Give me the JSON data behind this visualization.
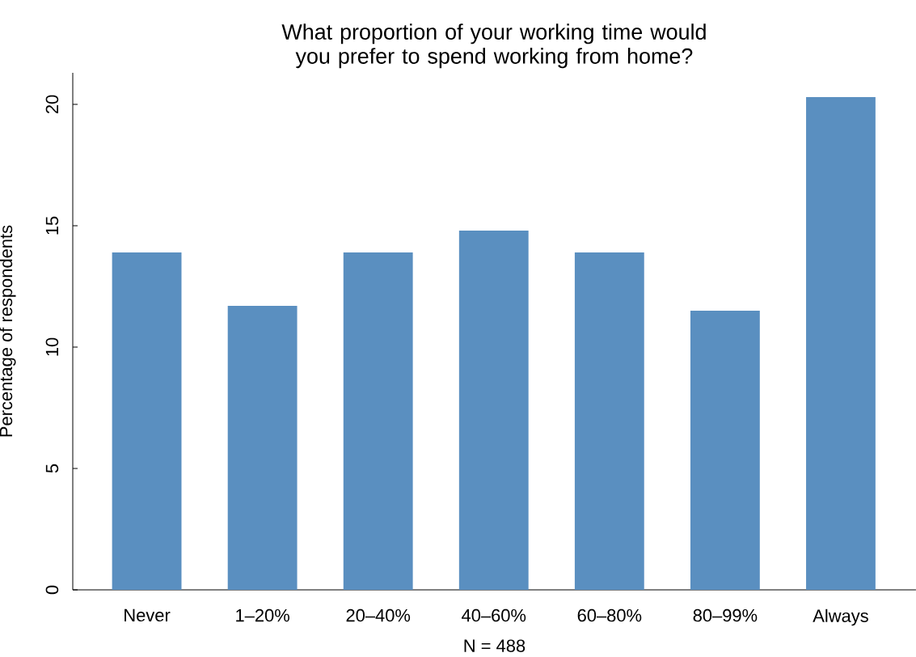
{
  "chart_data": {
    "type": "bar",
    "title": "What proportion of your working time would you prefer to spend working from home?",
    "xlabel": "N = 488",
    "ylabel": "Percentage of respondents",
    "categories": [
      "Never",
      "1–20%",
      "20–40%",
      "40–60%",
      "60–80%",
      "80–99%",
      "Always"
    ],
    "values": [
      13.9,
      11.7,
      13.9,
      14.8,
      13.9,
      11.5,
      20.3
    ],
    "color": "#5a8fc0",
    "ylim": [
      0,
      21.3
    ],
    "yticks": [
      0,
      5,
      10,
      15,
      20
    ],
    "grid": false
  }
}
